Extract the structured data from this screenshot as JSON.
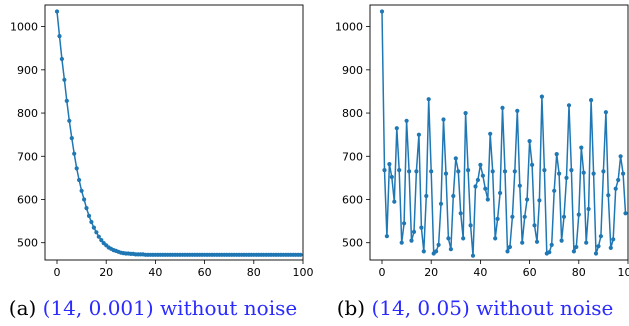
{
  "chart_data": [
    {
      "type": "line",
      "caption": {
        "letter": "(a)",
        "params": "(14, 0.001)",
        "suffix": "without noise"
      },
      "xlim": [
        0,
        100
      ],
      "ylim": [
        460,
        1050
      ],
      "xticks": [
        0,
        20,
        40,
        60,
        80,
        100
      ],
      "yticks": [
        500,
        600,
        700,
        800,
        900,
        1000
      ],
      "grid": false,
      "series_color": "#1f77b4",
      "x": [
        0,
        1,
        2,
        3,
        4,
        5,
        6,
        7,
        8,
        9,
        10,
        11,
        12,
        13,
        14,
        15,
        16,
        17,
        18,
        19,
        20,
        21,
        22,
        23,
        24,
        25,
        26,
        27,
        28,
        29,
        30,
        31,
        32,
        33,
        34,
        35,
        36,
        37,
        38,
        39,
        40,
        41,
        42,
        43,
        44,
        45,
        46,
        47,
        48,
        49,
        50,
        51,
        52,
        53,
        54,
        55,
        56,
        57,
        58,
        59,
        60,
        61,
        62,
        63,
        64,
        65,
        66,
        67,
        68,
        69,
        70,
        71,
        72,
        73,
        74,
        75,
        76,
        77,
        78,
        79,
        80,
        81,
        82,
        83,
        84,
        85,
        86,
        87,
        88,
        89,
        90,
        91,
        92,
        93,
        94,
        95,
        96,
        97,
        98,
        99
      ],
      "y": [
        1035,
        978,
        925,
        877,
        828,
        782,
        742,
        706,
        672,
        645,
        620,
        600,
        580,
        562,
        548,
        535,
        524,
        514,
        506,
        499,
        494,
        489,
        486,
        483,
        481,
        479,
        477,
        476,
        475,
        475,
        474,
        474,
        473,
        473,
        473,
        473,
        472,
        472,
        472,
        472,
        472,
        472,
        472,
        472,
        472,
        472,
        472,
        472,
        472,
        472,
        472,
        472,
        472,
        472,
        472,
        472,
        472,
        472,
        472,
        472,
        472,
        472,
        472,
        472,
        472,
        472,
        472,
        472,
        472,
        472,
        472,
        472,
        472,
        472,
        472,
        472,
        472,
        472,
        472,
        472,
        472,
        472,
        472,
        472,
        472,
        472,
        472,
        472,
        472,
        472,
        472,
        472,
        472,
        472,
        472,
        472,
        472,
        472,
        472,
        472
      ]
    },
    {
      "type": "line",
      "caption": {
        "letter": "(b)",
        "params": "(14, 0.05)",
        "suffix": "without noise"
      },
      "xlim": [
        0,
        100
      ],
      "ylim": [
        460,
        1050
      ],
      "xticks": [
        0,
        20,
        40,
        60,
        80,
        100
      ],
      "yticks": [
        500,
        600,
        700,
        800,
        900,
        1000
      ],
      "grid": false,
      "series_color": "#1f77b4",
      "x": [
        0,
        1,
        2,
        3,
        4,
        5,
        6,
        7,
        8,
        9,
        10,
        11,
        12,
        13,
        14,
        15,
        16,
        17,
        18,
        19,
        20,
        21,
        22,
        23,
        24,
        25,
        26,
        27,
        28,
        29,
        30,
        31,
        32,
        33,
        34,
        35,
        36,
        37,
        38,
        39,
        40,
        41,
        42,
        43,
        44,
        45,
        46,
        47,
        48,
        49,
        50,
        51,
        52,
        53,
        54,
        55,
        56,
        57,
        58,
        59,
        60,
        61,
        62,
        63,
        64,
        65,
        66,
        67,
        68,
        69,
        70,
        71,
        72,
        73,
        74,
        75,
        76,
        77,
        78,
        79,
        80,
        81,
        82,
        83,
        84,
        85,
        86,
        87,
        88,
        89,
        90,
        91,
        92,
        93,
        94,
        95,
        96,
        97,
        98,
        99
      ],
      "y": [
        1035,
        668,
        515,
        682,
        652,
        595,
        765,
        668,
        500,
        545,
        782,
        665,
        505,
        525,
        665,
        750,
        535,
        480,
        608,
        832,
        665,
        475,
        480,
        495,
        590,
        785,
        660,
        510,
        485,
        608,
        695,
        665,
        568,
        510,
        800,
        668,
        540,
        470,
        630,
        645,
        680,
        655,
        625,
        600,
        752,
        665,
        510,
        555,
        615,
        812,
        665,
        480,
        490,
        560,
        665,
        805,
        632,
        500,
        560,
        600,
        735,
        680,
        540,
        502,
        598,
        838,
        668,
        475,
        478,
        495,
        620,
        705,
        660,
        505,
        560,
        650,
        818,
        668,
        480,
        490,
        565,
        720,
        662,
        500,
        578,
        830,
        660,
        475,
        492,
        515,
        665,
        802,
        610,
        488,
        508,
        625,
        645,
        700,
        660,
        568
      ]
    }
  ]
}
